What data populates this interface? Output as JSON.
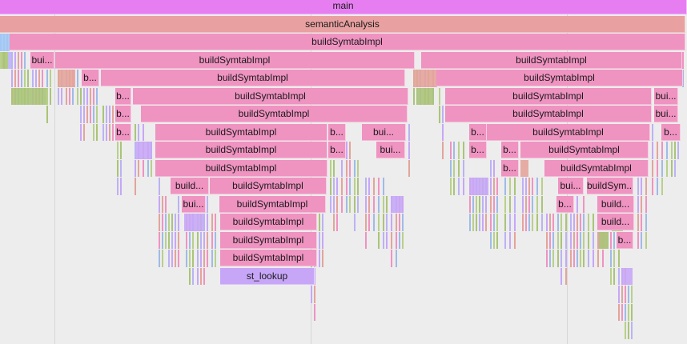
{
  "colors": {
    "main": "#e67ef2",
    "semantic": "#e8a0a0",
    "sym": "#ef93c1",
    "lookup": "#c7a6f8",
    "slivers": [
      "#aac478",
      "#bbb2f4",
      "#c6a7f7",
      "#e3a49a",
      "#ef93c1",
      "#9fbbe7",
      "#b8d08a"
    ]
  },
  "labels": {
    "main": "main",
    "semantic": "semanticAnalysis",
    "build": "buildSymtabImpl",
    "bui": "bui...",
    "b": "b...",
    "build_short": "build...",
    "buildsym": "buildSym...",
    "lookup": "st_lookup"
  }
}
